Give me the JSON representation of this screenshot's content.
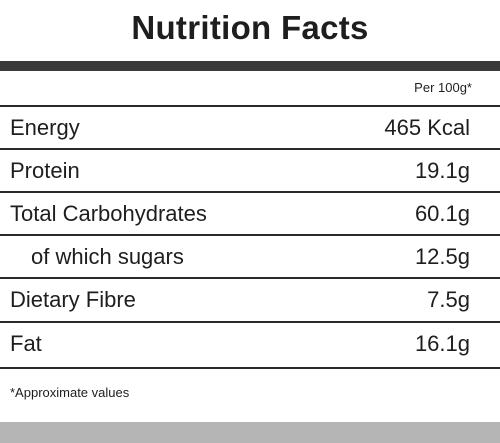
{
  "label": {
    "title": "Nutrition Facts",
    "serving_basis": "Per 100g*",
    "rows": [
      {
        "name": "Energy",
        "value": "465 Kcal",
        "indent": false
      },
      {
        "name": "Protein",
        "value": "19.1g",
        "indent": false
      },
      {
        "name": "Total Carbohydrates",
        "value": "60.1g",
        "indent": false
      },
      {
        "name": "of which sugars",
        "value": "12.5g",
        "indent": true
      },
      {
        "name": "Dietary Fibre",
        "value": "7.5g",
        "indent": false
      },
      {
        "name": "Fat",
        "value": "16.1g",
        "indent": false
      }
    ],
    "footnote": "*Approximate values"
  },
  "colors": {
    "thick_bar": "#3a3a3a",
    "rule": "#2a2a2a",
    "bottom_band": "#b5b5b5",
    "text": "#1e1e1e"
  }
}
